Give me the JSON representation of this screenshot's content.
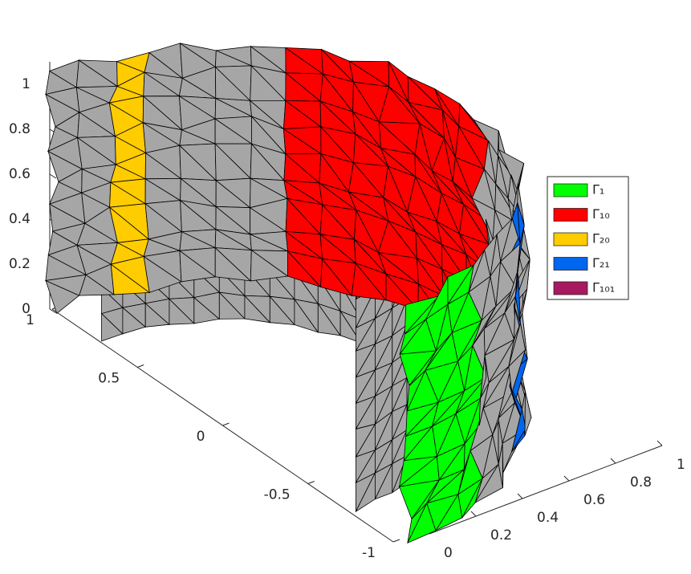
{
  "chart_data": {
    "type": "mesh3d",
    "series": [
      {
        "name": "Γ₁",
        "color": "#00ff00"
      },
      {
        "name": "Γ₁₀",
        "color": "#ff0000"
      },
      {
        "name": "Γ₂₀",
        "color": "#ffcc00"
      },
      {
        "name": "Γ₂₁",
        "color": "#0066ee"
      },
      {
        "name": "Γ₁₀₁",
        "color": "#a8195f"
      }
    ],
    "mesh_color": "#a6a6a6",
    "xlim": [
      0,
      1
    ],
    "xticks": [
      0,
      0.2,
      0.4,
      0.6,
      0.8,
      1
    ],
    "ylim": [
      -1,
      1
    ],
    "yticks": [
      -1,
      -0.5,
      0,
      0.5,
      1
    ],
    "zlim": [
      0,
      1.1
    ],
    "zticks": [
      0,
      0.2,
      0.4,
      0.6,
      0.8,
      1
    ],
    "legend": "east"
  }
}
